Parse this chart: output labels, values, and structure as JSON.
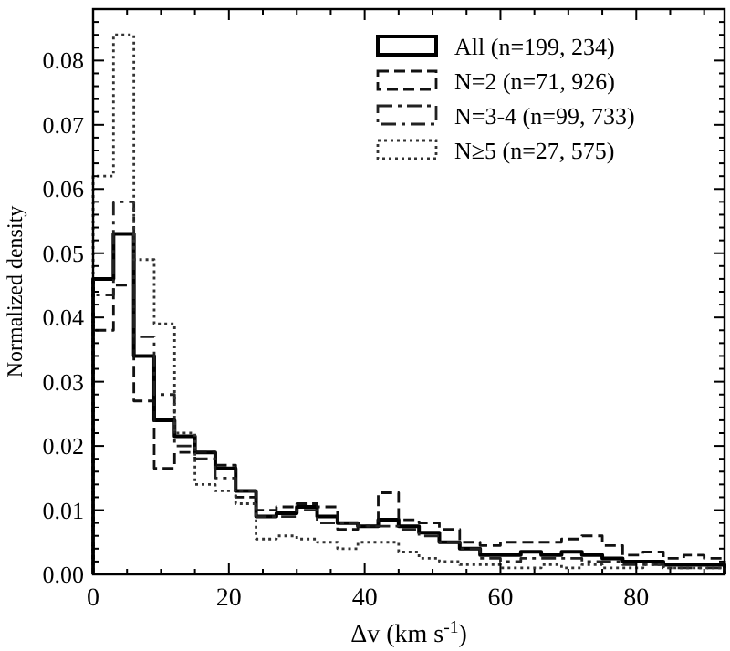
{
  "chart_data": {
    "type": "histogram",
    "xlabel": "Δv (km s$^{-1}$)",
    "ylabel": "Normalized density",
    "bins": [
      0,
      3,
      6,
      9,
      12,
      15,
      18,
      21,
      24,
      27,
      30,
      33,
      36,
      39,
      42,
      45,
      48,
      51,
      54,
      57,
      60,
      63,
      66,
      69,
      72,
      75,
      78,
      81,
      84,
      87,
      90,
      93
    ],
    "xlim": [
      0,
      93
    ],
    "ylim": [
      0,
      0.088
    ],
    "xticks": [
      0,
      {
        "value": 5,
        "label": null
      },
      {
        "value": 10,
        "label": null
      },
      {
        "value": 15,
        "label": null
      },
      20,
      {
        "value": 25,
        "label": null
      },
      {
        "value": 30,
        "label": null
      },
      {
        "value": 35,
        "label": null
      },
      40,
      {
        "value": 45,
        "label": null
      },
      {
        "value": 50,
        "label": null
      },
      {
        "value": 55,
        "label": null
      },
      60,
      {
        "value": 65,
        "label": null
      },
      {
        "value": 70,
        "label": null
      },
      {
        "value": 75,
        "label": null
      },
      80,
      {
        "value": 85,
        "label": null
      },
      {
        "value": 90,
        "label": null
      }
    ],
    "yticks": [
      {
        "value": 0,
        "label": "0.00"
      },
      {
        "value": 0.002,
        "label": null
      },
      {
        "value": 0.004,
        "label": null
      },
      {
        "value": 0.006,
        "label": null
      },
      {
        "value": 0.008,
        "label": null
      },
      {
        "value": 0.01,
        "label": "0.01"
      },
      {
        "value": 0.012,
        "label": null
      },
      {
        "value": 0.014,
        "label": null
      },
      {
        "value": 0.016,
        "label": null
      },
      {
        "value": 0.018,
        "label": null
      },
      {
        "value": 0.02,
        "label": "0.02"
      },
      {
        "value": 0.022,
        "label": null
      },
      {
        "value": 0.024,
        "label": null
      },
      {
        "value": 0.026,
        "label": null
      },
      {
        "value": 0.028,
        "label": null
      },
      {
        "value": 0.03,
        "label": "0.03"
      },
      {
        "value": 0.032,
        "label": null
      },
      {
        "value": 0.034,
        "label": null
      },
      {
        "value": 0.036,
        "label": null
      },
      {
        "value": 0.038,
        "label": null
      },
      {
        "value": 0.04,
        "label": "0.04"
      },
      {
        "value": 0.042,
        "label": null
      },
      {
        "value": 0.044,
        "label": null
      },
      {
        "value": 0.046,
        "label": null
      },
      {
        "value": 0.048,
        "label": null
      },
      {
        "value": 0.05,
        "label": "0.05"
      },
      {
        "value": 0.052,
        "label": null
      },
      {
        "value": 0.054,
        "label": null
      },
      {
        "value": 0.056,
        "label": null
      },
      {
        "value": 0.058,
        "label": null
      },
      {
        "value": 0.06,
        "label": "0.06"
      },
      {
        "value": 0.062,
        "label": null
      },
      {
        "value": 0.064,
        "label": null
      },
      {
        "value": 0.066,
        "label": null
      },
      {
        "value": 0.068,
        "label": null
      },
      {
        "value": 0.07,
        "label": "0.07"
      },
      {
        "value": 0.072,
        "label": null
      },
      {
        "value": 0.074,
        "label": null
      },
      {
        "value": 0.076,
        "label": null
      },
      {
        "value": 0.078,
        "label": null
      },
      {
        "value": 0.08,
        "label": "0.08"
      },
      {
        "value": 0.082,
        "label": null
      },
      {
        "value": 0.084,
        "label": null
      },
      {
        "value": 0.086,
        "label": null
      }
    ],
    "legend": "top right",
    "grid": false,
    "series": [
      {
        "name": "All (n=199, 234)",
        "color": "#000000",
        "line_style": "solid",
        "values": [
          0.046,
          0.053,
          0.034,
          0.024,
          0.0215,
          0.019,
          0.0165,
          0.013,
          0.009,
          0.0095,
          0.0105,
          0.009,
          0.008,
          0.0075,
          0.0085,
          0.0075,
          0.0065,
          0.005,
          0.004,
          0.003,
          0.003,
          0.0035,
          0.003,
          0.0035,
          0.003,
          0.0025,
          0.002,
          0.002,
          0.0015,
          0.0015,
          0.0015
        ]
      },
      {
        "name": "N=2 (n=71, 926)",
        "color": "#111111",
        "line_style": "dashed",
        "values": [
          0.038,
          0.045,
          0.027,
          0.0165,
          0.019,
          0.019,
          0.017,
          0.012,
          0.01,
          0.0105,
          0.011,
          0.0105,
          0.007,
          0.0075,
          0.0127,
          0.0085,
          0.008,
          0.007,
          0.005,
          0.0045,
          0.005,
          0.005,
          0.005,
          0.0055,
          0.006,
          0.0045,
          0.003,
          0.0035,
          0.0025,
          0.003,
          0.0025
        ]
      },
      {
        "name": "N=3-4 (n=99, 733)",
        "color": "#222222",
        "line_style": "dashdot",
        "values": [
          0.0435,
          0.058,
          0.037,
          0.028,
          0.02,
          0.018,
          0.015,
          0.013,
          0.009,
          0.009,
          0.01,
          0.008,
          0.008,
          0.0075,
          0.0075,
          0.007,
          0.006,
          0.005,
          0.004,
          0.0025,
          0.002,
          0.0025,
          0.0025,
          0.0025,
          0.002,
          0.002,
          0.0015,
          0.0015,
          0.001,
          0.001,
          0.001
        ]
      },
      {
        "name": "N≥5 (n=27, 575)",
        "color": "#333333",
        "line_style": "dotted",
        "values": [
          0.062,
          0.084,
          0.049,
          0.039,
          0.022,
          0.014,
          0.013,
          0.011,
          0.0055,
          0.006,
          0.0055,
          0.005,
          0.004,
          0.005,
          0.005,
          0.0035,
          0.0025,
          0.002,
          0.0015,
          0.0015,
          0.001,
          0.001,
          0.0015,
          0.001,
          0.0015,
          0.001,
          0.001,
          0.0015,
          0.001,
          0.001,
          0.001
        ]
      }
    ]
  }
}
